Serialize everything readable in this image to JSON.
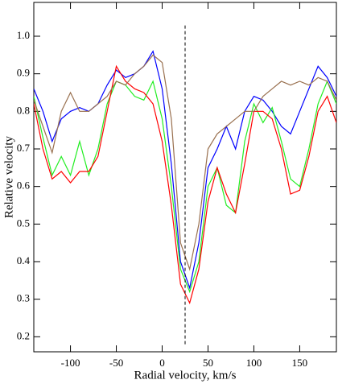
{
  "chart_data": {
    "type": "line",
    "xlabel": "Radial velocity, km/s",
    "ylabel": "Relative velocity",
    "x": [
      -140,
      -130,
      -120,
      -110,
      -100,
      -90,
      -80,
      -70,
      -60,
      -50,
      -40,
      -30,
      -20,
      -10,
      0,
      10,
      20,
      30,
      40,
      50,
      60,
      70,
      80,
      90,
      100,
      110,
      120,
      130,
      140,
      150,
      160,
      170,
      180,
      190
    ],
    "series": [
      {
        "name": "blue",
        "color": "#0000ff",
        "values": [
          0.86,
          0.8,
          0.72,
          0.78,
          0.8,
          0.81,
          0.8,
          0.82,
          0.87,
          0.91,
          0.89,
          0.9,
          0.92,
          0.96,
          0.86,
          0.66,
          0.4,
          0.33,
          0.45,
          0.65,
          0.7,
          0.76,
          0.7,
          0.8,
          0.84,
          0.83,
          0.8,
          0.76,
          0.74,
          0.8,
          0.86,
          0.92,
          0.89,
          0.84
        ]
      },
      {
        "name": "green",
        "color": "#22ee22",
        "values": [
          0.84,
          0.73,
          0.63,
          0.68,
          0.63,
          0.72,
          0.63,
          0.7,
          0.82,
          0.88,
          0.87,
          0.84,
          0.83,
          0.88,
          0.78,
          0.6,
          0.38,
          0.32,
          0.4,
          0.6,
          0.65,
          0.55,
          0.53,
          0.72,
          0.82,
          0.77,
          0.81,
          0.72,
          0.62,
          0.6,
          0.7,
          0.82,
          0.88,
          0.82
        ]
      },
      {
        "name": "red",
        "color": "#ff0000",
        "values": [
          0.82,
          0.7,
          0.62,
          0.64,
          0.61,
          0.64,
          0.64,
          0.68,
          0.8,
          0.92,
          0.88,
          0.86,
          0.85,
          0.82,
          0.72,
          0.55,
          0.34,
          0.29,
          0.38,
          0.56,
          0.65,
          0.58,
          0.53,
          0.66,
          0.8,
          0.8,
          0.78,
          0.7,
          0.58,
          0.59,
          0.68,
          0.8,
          0.84,
          0.77
        ]
      },
      {
        "name": "brown",
        "color": "#99704f",
        "values": [
          0.83,
          0.76,
          0.69,
          0.8,
          0.85,
          0.8,
          0.8,
          0.82,
          0.84,
          0.88,
          0.87,
          0.9,
          0.92,
          0.95,
          0.93,
          0.78,
          0.45,
          0.38,
          0.5,
          0.7,
          0.74,
          0.76,
          0.78,
          0.8,
          0.8,
          0.84,
          0.86,
          0.88,
          0.87,
          0.88,
          0.87,
          0.89,
          0.88,
          0.83
        ]
      }
    ],
    "reference_line": {
      "x": 25,
      "y": [
        0.18,
        1.03
      ]
    },
    "xlim": [
      -140,
      190
    ],
    "ylim": [
      0.16,
      1.09
    ],
    "xticks": [
      -100,
      -50,
      0,
      50,
      100,
      150
    ],
    "yticks": [
      0.2,
      0.3,
      0.4,
      0.5,
      0.6,
      0.7,
      0.8,
      0.9,
      {
        "value": 1,
        "label": "1.0"
      }
    ]
  }
}
